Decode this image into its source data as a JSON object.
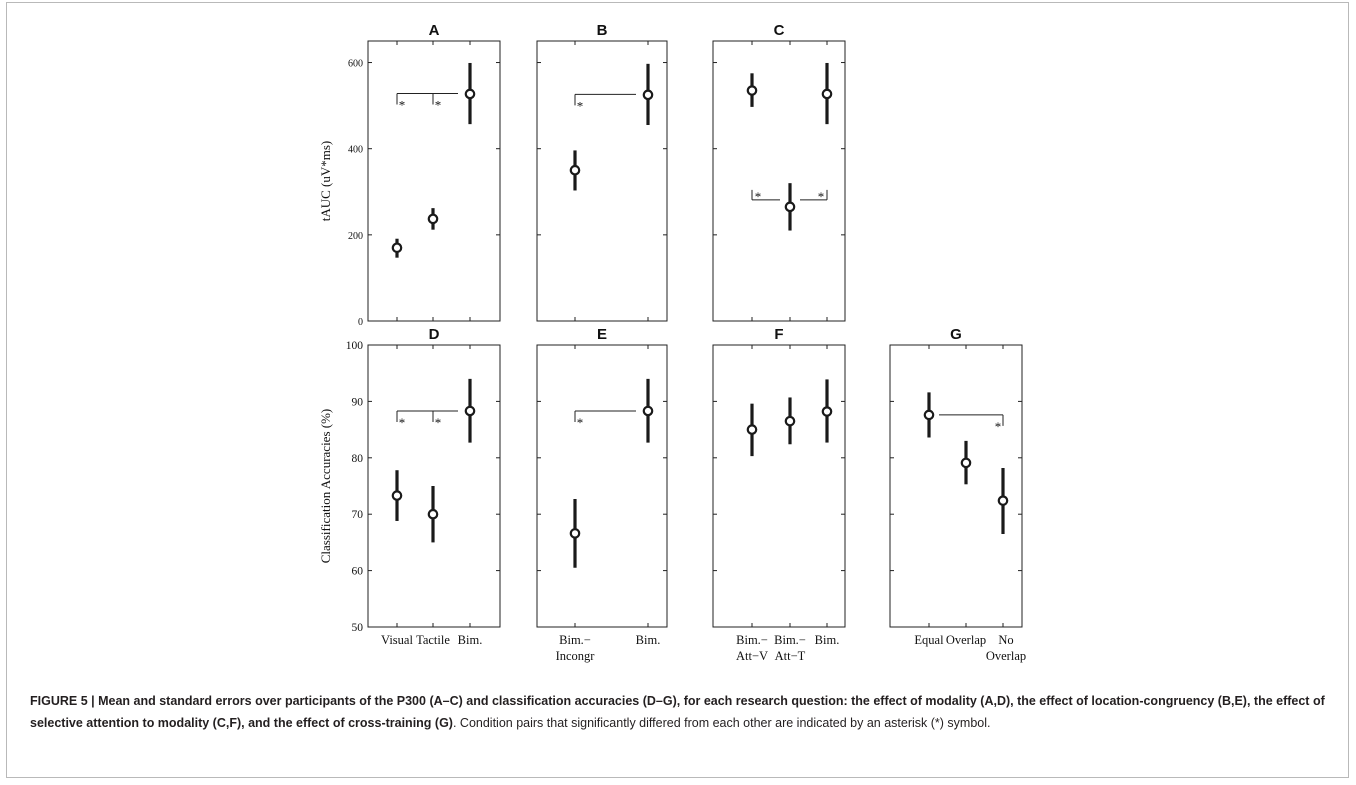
{
  "figure": {
    "ylabel_top": "tAUC (uV*ms)",
    "ylabel_bottom": "Classification Accuracies (%)",
    "yticks_top": [
      "0",
      "200",
      "400",
      "600"
    ],
    "yticks_bottom": [
      "50",
      "60",
      "70",
      "80",
      "90",
      "100"
    ],
    "star": "*"
  },
  "chart_data": [
    {
      "type": "scatter",
      "title": "A",
      "ylabel": "tAUC (uV*ms)",
      "ylim": [
        0,
        650
      ],
      "categories": [
        "Visual",
        "Tactile",
        "Bim."
      ],
      "mean": [
        170,
        237,
        527
      ],
      "lower": [
        147,
        212,
        457
      ],
      "upper": [
        191,
        262,
        599
      ],
      "sig_pairs": [
        [
          "Visual",
          "Bim."
        ],
        [
          "Tactile",
          "Bim."
        ]
      ]
    },
    {
      "type": "scatter",
      "title": "B",
      "ylabel": "tAUC (uV*ms)",
      "ylim": [
        0,
        650
      ],
      "categories": [
        "Bim.− Incongr",
        "Bim."
      ],
      "mean": [
        350,
        525
      ],
      "lower": [
        303,
        455
      ],
      "upper": [
        396,
        597
      ],
      "sig_pairs": [
        [
          "Bim.− Incongr",
          "Bim."
        ]
      ]
    },
    {
      "type": "scatter",
      "title": "C",
      "ylabel": "tAUC (uV*ms)",
      "ylim": [
        0,
        650
      ],
      "categories": [
        "Bim.− Att−V",
        "Bim.− Att−T",
        "Bim."
      ],
      "mean": [
        535,
        265,
        527
      ],
      "lower": [
        497,
        210,
        457
      ],
      "upper": [
        575,
        320,
        599
      ],
      "sig_pairs": [
        [
          "Bim.− Att−V",
          "Bim.− Att−T"
        ],
        [
          "Bim.− Att−T",
          "Bim."
        ]
      ]
    },
    {
      "type": "scatter",
      "title": "D",
      "ylabel": "Classification Accuracies (%)",
      "ylim": [
        50,
        100
      ],
      "categories": [
        "Visual",
        "Tactile",
        "Bim."
      ],
      "mean": [
        73.3,
        70,
        88.3
      ],
      "lower": [
        68.8,
        65,
        82.7
      ],
      "upper": [
        77.8,
        75,
        94
      ],
      "sig_pairs": [
        [
          "Visual",
          "Bim."
        ],
        [
          "Tactile",
          "Bim."
        ]
      ]
    },
    {
      "type": "scatter",
      "title": "E",
      "ylabel": "Classification Accuracies (%)",
      "ylim": [
        50,
        100
      ],
      "categories": [
        "Bim.− Incongr",
        "Bim."
      ],
      "mean": [
        66.6,
        88.3
      ],
      "lower": [
        60.5,
        82.7
      ],
      "upper": [
        72.7,
        94
      ],
      "sig_pairs": [
        [
          "Bim.− Incongr",
          "Bim."
        ]
      ]
    },
    {
      "type": "scatter",
      "title": "F",
      "ylabel": "Classification Accuracies (%)",
      "ylim": [
        50,
        100
      ],
      "categories": [
        "Bim.− Att−V",
        "Bim.− Att−T",
        "Bim."
      ],
      "mean": [
        85,
        86.5,
        88.2
      ],
      "lower": [
        80.3,
        82.4,
        82.7
      ],
      "upper": [
        89.6,
        90.7,
        93.9
      ],
      "sig_pairs": []
    },
    {
      "type": "scatter",
      "title": "G",
      "ylabel": "Classification Accuracies (%)",
      "ylim": [
        50,
        100
      ],
      "categories": [
        "Equal",
        "Overlap",
        "No Overlap"
      ],
      "mean": [
        87.6,
        79.1,
        72.4
      ],
      "lower": [
        83.6,
        75.3,
        66.5
      ],
      "upper": [
        91.6,
        83,
        78.2
      ],
      "sig_pairs": [
        [
          "Equal",
          "No Overlap"
        ]
      ]
    }
  ],
  "caption": {
    "bold": "FIGURE 5 | Mean and standard errors over participants of the P300 (A–C) and classification accuracies (D–G), for each research question: the effect of modality (A,D), the effect of location-congruency (B,E), the effect of selective attention to modality (C,F), and the effect of cross-training (G)",
    "rest": ". Condition pairs that significantly differed from each other are indicated by an asterisk (*) symbol."
  }
}
